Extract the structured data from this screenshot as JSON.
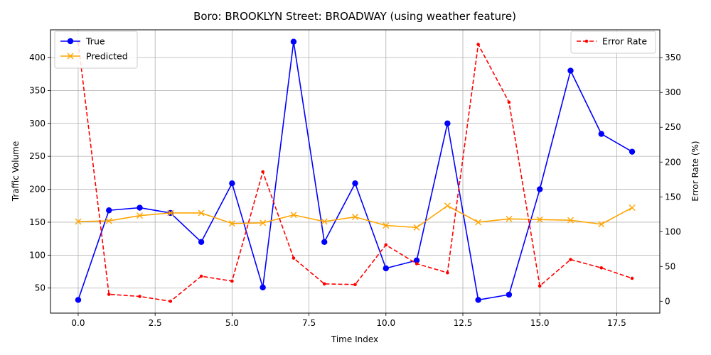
{
  "chart_data": {
    "type": "line",
    "title": "Boro: BROOKLYN Street: BROADWAY (using weather feature)",
    "xlabel": "Time Index",
    "ylabel": "Traffic Volume",
    "y2label": "Error Rate (%)",
    "xlim": [
      -0.9,
      18.9
    ],
    "ylim": [
      12,
      442
    ],
    "y2lim": [
      -17,
      390
    ],
    "xticks": [
      0.0,
      2.5,
      5.0,
      7.5,
      10.0,
      12.5,
      15.0,
      17.5
    ],
    "xtick_labels": [
      "0.0",
      "2.5",
      "5.0",
      "7.5",
      "10.0",
      "12.5",
      "15.0",
      "17.5"
    ],
    "yticks": [
      50,
      100,
      150,
      200,
      250,
      300,
      350,
      400
    ],
    "yticks_labels": [
      "50",
      "100",
      "150",
      "200",
      "250",
      "300",
      "350",
      "400"
    ],
    "y2ticks": [
      0,
      50,
      100,
      150,
      200,
      250,
      300,
      350
    ],
    "y2ticks_labels": [
      "0",
      "50",
      "100",
      "150",
      "200",
      "250",
      "300",
      "350"
    ],
    "grid": true,
    "x": [
      0,
      1,
      2,
      3,
      4,
      5,
      6,
      7,
      8,
      9,
      10,
      11,
      12,
      13,
      14,
      15,
      16,
      17,
      18
    ],
    "series": [
      {
        "name": "True",
        "axis": "left",
        "color": "#0000ff",
        "marker": "circle",
        "style": "solid",
        "values": [
          32,
          168,
          172,
          164,
          120,
          209,
          51,
          424,
          120,
          209,
          80,
          92,
          300,
          32,
          40,
          200,
          380,
          284,
          257
        ]
      },
      {
        "name": "Predicted",
        "axis": "left",
        "color": "#ffa500",
        "marker": "x",
        "style": "solid",
        "values": [
          151,
          152,
          160,
          164,
          164,
          148,
          149,
          161,
          151,
          158,
          145,
          142,
          175,
          150,
          155,
          154,
          153,
          147,
          172
        ]
      },
      {
        "name": "Error Rate",
        "axis": "right",
        "color": "#ff0000",
        "marker": "dot",
        "style": "dashed",
        "values": [
          372,
          10,
          7,
          0,
          36,
          29,
          186,
          62,
          25,
          24,
          81,
          54,
          41,
          369,
          286,
          22,
          60,
          48,
          33
        ]
      }
    ],
    "legends": [
      {
        "position": "upper-left",
        "entries": [
          "True",
          "Predicted"
        ]
      },
      {
        "position": "upper-right",
        "entries": [
          "Error Rate"
        ]
      }
    ]
  }
}
